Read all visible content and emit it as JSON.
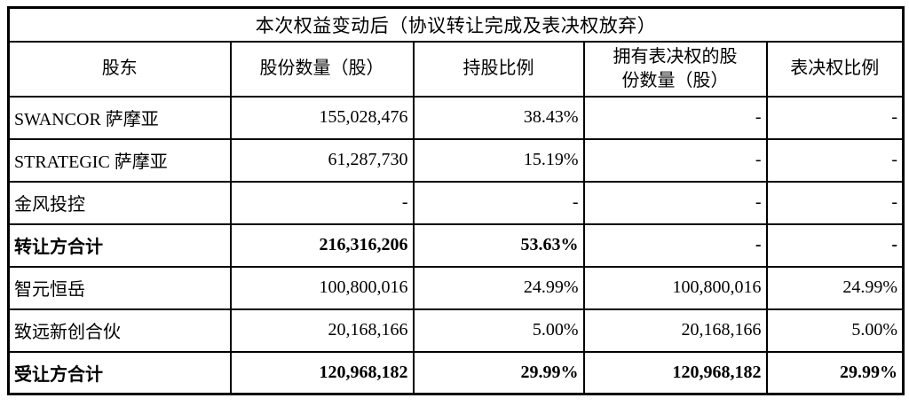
{
  "table": {
    "title": "本次权益变动后（协议转让完成及表决权放弃）",
    "columns": {
      "shareholder": "股东",
      "shares": "股份数量（股）",
      "holding_pct": "持股比例",
      "voting_shares": "拥有表决权的股\n份数量（股）",
      "voting_pct": "表决权比例"
    },
    "rows": [
      {
        "shareholder": "SWANCOR 萨摩亚",
        "shares": "155,028,476",
        "holding_pct": "38.43%",
        "voting_shares": "-",
        "voting_pct": "-"
      },
      {
        "shareholder": "STRATEGIC 萨摩亚",
        "shares": "61,287,730",
        "holding_pct": "15.19%",
        "voting_shares": "-",
        "voting_pct": "-"
      },
      {
        "shareholder": "金风投控",
        "shares": "-",
        "holding_pct": "-",
        "voting_shares": "-",
        "voting_pct": "-"
      },
      {
        "shareholder": "转让方合计",
        "shares": "216,316,206",
        "holding_pct": "53.63%",
        "voting_shares": "-",
        "voting_pct": "-"
      },
      {
        "shareholder": "智元恒岳",
        "shares": "100,800,016",
        "holding_pct": "24.99%",
        "voting_shares": "100,800,016",
        "voting_pct": "24.99%"
      },
      {
        "shareholder": "致远新创合伙",
        "shares": "20,168,166",
        "holding_pct": "5.00%",
        "voting_shares": "20,168,166",
        "voting_pct": "5.00%"
      },
      {
        "shareholder": "受让方合计",
        "shares": "120,968,182",
        "holding_pct": "29.99%",
        "voting_shares": "120,968,182",
        "voting_pct": "29.99%"
      }
    ]
  }
}
